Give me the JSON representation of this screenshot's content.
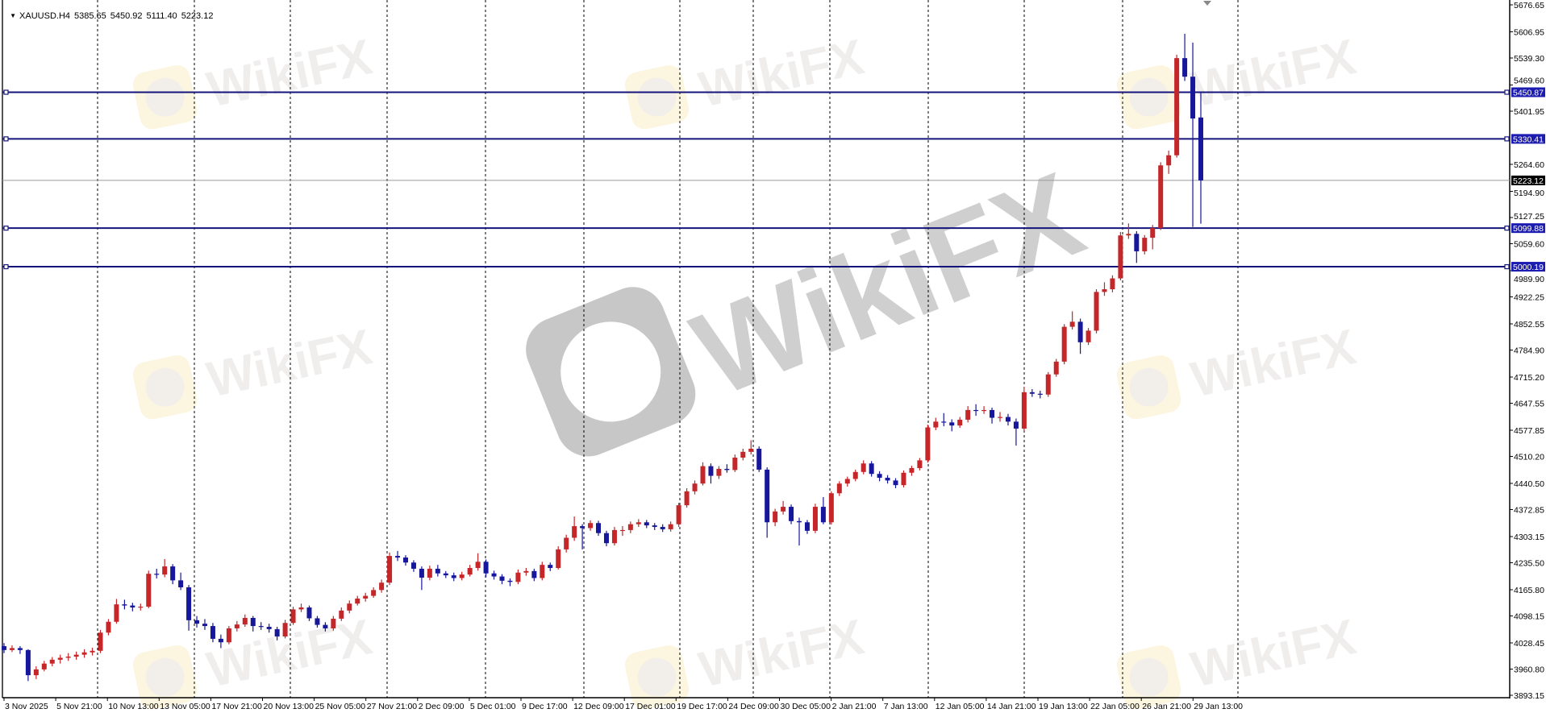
{
  "header": {
    "symbol": "XAUUSD.H4",
    "open": "5385.65",
    "high": "5450.92",
    "low": "5111.40",
    "close": "5223.12",
    "menu_icon": "triangle-down-icon"
  },
  "watermark": "WikiFX",
  "colors": {
    "bull": "#c4262a",
    "bear": "#17179c",
    "level_line": "#14147a",
    "level_label": "#1c1cb0",
    "current_price_label": "#000000",
    "grid": "#000000"
  },
  "chart_data": {
    "type": "candlestick",
    "symbol": "XAUUSD",
    "timeframe": "H4",
    "ylim": [
      3893.15,
      5676.65
    ],
    "grid": "vertical dashed",
    "y_ticks": [
      "5676.65",
      "5606.95",
      "5539.30",
      "5469.60",
      "5401.95",
      "5264.60",
      "5194.90",
      "5127.25",
      "5059.60",
      "4989.90",
      "4922.25",
      "4852.55",
      "4784.90",
      "4715.20",
      "4647.55",
      "4577.85",
      "4510.20",
      "4440.50",
      "4372.85",
      "4303.15",
      "4235.50",
      "4165.80",
      "4098.15",
      "4028.45",
      "3960.80",
      "3893.15"
    ],
    "x_ticks": [
      "3 Nov 2025",
      "5 Nov 21:00",
      "10 Nov 13:00",
      "13 Nov 05:00",
      "17 Nov 21:00",
      "20 Nov 13:00",
      "25 Nov 05:00",
      "27 Nov 21:00",
      "2 Dec 09:00",
      "5 Dec 01:00",
      "9 Dec 17:00",
      "12 Dec 09:00",
      "17 Dec 01:00",
      "19 Dec 17:00",
      "24 Dec 09:00",
      "30 Dec 05:00",
      "2 Jan 21:00",
      "7 Jan 13:00",
      "12 Jan 05:00",
      "14 Jan 21:00",
      "19 Jan 13:00",
      "22 Jan 05:00",
      "26 Jan 21:00",
      "29 Jan 13:00"
    ],
    "horizontal_levels": [
      5450.87,
      5330.41,
      5099.88,
      5000.19
    ],
    "horizontal_level_labels": [
      "5450.87",
      "5330.41",
      "5099.88",
      "5000.19"
    ],
    "current_price": 5223.12,
    "current_price_label": "5223.12",
    "candles_ohlc": [
      [
        4020,
        4028,
        4002,
        4010
      ],
      [
        4010,
        4022,
        4005,
        4015
      ],
      [
        4015,
        4020,
        4000,
        4010
      ],
      [
        4010,
        4012,
        3930,
        3945
      ],
      [
        3945,
        3968,
        3935,
        3960
      ],
      [
        3960,
        3982,
        3955,
        3975
      ],
      [
        3975,
        3992,
        3968,
        3985
      ],
      [
        3985,
        3998,
        3975,
        3990
      ],
      [
        3990,
        4002,
        3982,
        3993
      ],
      [
        3993,
        4006,
        3985,
        3998
      ],
      [
        3998,
        4012,
        3990,
        4004
      ],
      [
        4004,
        4016,
        3996,
        4008
      ],
      [
        4008,
        4062,
        4002,
        4055
      ],
      [
        4055,
        4090,
        4048,
        4083
      ],
      [
        4083,
        4142,
        4078,
        4128
      ],
      [
        4128,
        4140,
        4115,
        4125
      ],
      [
        4125,
        4132,
        4110,
        4120
      ],
      [
        4120,
        4130,
        4112,
        4122
      ],
      [
        4122,
        4215,
        4118,
        4207
      ],
      [
        4207,
        4220,
        4195,
        4205
      ],
      [
        4205,
        4245,
        4198,
        4226
      ],
      [
        4226,
        4232,
        4180,
        4190
      ],
      [
        4190,
        4210,
        4165,
        4172
      ],
      [
        4172,
        4178,
        4060,
        4087
      ],
      [
        4087,
        4098,
        4068,
        4078
      ],
      [
        4078,
        4090,
        4062,
        4072
      ],
      [
        4072,
        4080,
        4030,
        4039
      ],
      [
        4039,
        4050,
        4015,
        4030
      ],
      [
        4030,
        4072,
        4025,
        4066
      ],
      [
        4066,
        4085,
        4058,
        4076
      ],
      [
        4076,
        4102,
        4070,
        4093
      ],
      [
        4093,
        4098,
        4058,
        4072
      ],
      [
        4072,
        4082,
        4062,
        4070
      ],
      [
        4070,
        4078,
        4055,
        4064
      ],
      [
        4064,
        4070,
        4035,
        4045
      ],
      [
        4045,
        4088,
        4040,
        4080
      ],
      [
        4080,
        4122,
        4075,
        4115
      ],
      [
        4115,
        4130,
        4108,
        4120
      ],
      [
        4120,
        4125,
        4085,
        4092
      ],
      [
        4092,
        4098,
        4068,
        4075
      ],
      [
        4075,
        4082,
        4058,
        4066
      ],
      [
        4066,
        4098,
        4060,
        4091
      ],
      [
        4091,
        4120,
        4085,
        4112
      ],
      [
        4112,
        4138,
        4105,
        4130
      ],
      [
        4130,
        4150,
        4125,
        4143
      ],
      [
        4143,
        4158,
        4135,
        4150
      ],
      [
        4150,
        4172,
        4145,
        4165
      ],
      [
        4165,
        4192,
        4158,
        4184
      ],
      [
        4184,
        4262,
        4178,
        4253
      ],
      [
        4253,
        4266,
        4240,
        4249
      ],
      [
        4249,
        4255,
        4228,
        4236
      ],
      [
        4236,
        4242,
        4212,
        4220
      ],
      [
        4220,
        4226,
        4165,
        4197
      ],
      [
        4197,
        4228,
        4190,
        4220
      ],
      [
        4220,
        4230,
        4200,
        4208
      ],
      [
        4208,
        4214,
        4196,
        4203
      ],
      [
        4203,
        4210,
        4188,
        4196
      ],
      [
        4196,
        4212,
        4190,
        4205
      ],
      [
        4205,
        4230,
        4200,
        4222
      ],
      [
        4222,
        4260,
        4215,
        4238
      ],
      [
        4238,
        4244,
        4198,
        4208
      ],
      [
        4208,
        4215,
        4192,
        4200
      ],
      [
        4200,
        4206,
        4180,
        4189
      ],
      [
        4189,
        4195,
        4175,
        4186
      ],
      [
        4186,
        4218,
        4180,
        4210
      ],
      [
        4210,
        4222,
        4202,
        4214
      ],
      [
        4214,
        4220,
        4188,
        4196
      ],
      [
        4196,
        4238,
        4190,
        4230
      ],
      [
        4230,
        4236,
        4214,
        4222
      ],
      [
        4222,
        4278,
        4218,
        4270
      ],
      [
        4270,
        4308,
        4262,
        4300
      ],
      [
        4300,
        4355,
        4292,
        4330
      ],
      [
        4330,
        4335,
        4270,
        4325
      ],
      [
        4325,
        4345,
        4318,
        4338
      ],
      [
        4338,
        4344,
        4305,
        4312
      ],
      [
        4312,
        4318,
        4278,
        4286
      ],
      [
        4286,
        4328,
        4280,
        4320
      ],
      [
        4320,
        4330,
        4305,
        4320
      ],
      [
        4320,
        4342,
        4312,
        4335
      ],
      [
        4335,
        4348,
        4328,
        4340
      ],
      [
        4340,
        4346,
        4325,
        4332
      ],
      [
        4332,
        4338,
        4320,
        4328
      ],
      [
        4328,
        4335,
        4315,
        4322
      ],
      [
        4322,
        4342,
        4316,
        4335
      ],
      [
        4335,
        4390,
        4328,
        4384
      ],
      [
        4384,
        4428,
        4378,
        4420
      ],
      [
        4420,
        4448,
        4412,
        4440
      ],
      [
        4440,
        4495,
        4435,
        4485
      ],
      [
        4485,
        4492,
        4440,
        4460
      ],
      [
        4460,
        4485,
        4452,
        4478
      ],
      [
        4478,
        4490,
        4468,
        4475
      ],
      [
        4475,
        4515,
        4470,
        4507
      ],
      [
        4507,
        4530,
        4500,
        4522
      ],
      [
        4522,
        4552,
        4515,
        4530
      ],
      [
        4530,
        4536,
        4470,
        4476
      ],
      [
        4476,
        4482,
        4300,
        4340
      ],
      [
        4340,
        4375,
        4330,
        4368
      ],
      [
        4368,
        4395,
        4360,
        4380
      ],
      [
        4380,
        4386,
        4335,
        4343
      ],
      [
        4343,
        4352,
        4280,
        4340
      ],
      [
        4340,
        4346,
        4310,
        4318
      ],
      [
        4318,
        4388,
        4312,
        4380
      ],
      [
        4380,
        4405,
        4335,
        4340
      ],
      [
        4340,
        4420,
        4334,
        4415
      ],
      [
        4415,
        4446,
        4408,
        4440
      ],
      [
        4440,
        4458,
        4432,
        4452
      ],
      [
        4452,
        4476,
        4446,
        4470
      ],
      [
        4470,
        4500,
        4464,
        4492
      ],
      [
        4492,
        4498,
        4458,
        4465
      ],
      [
        4465,
        4472,
        4446,
        4455
      ],
      [
        4455,
        4462,
        4440,
        4448
      ],
      [
        4448,
        4454,
        4428,
        4436
      ],
      [
        4436,
        4474,
        4430,
        4468
      ],
      [
        4468,
        4486,
        4460,
        4480
      ],
      [
        4480,
        4506,
        4474,
        4500
      ],
      [
        4500,
        4592,
        4494,
        4585
      ],
      [
        4585,
        4610,
        4578,
        4600
      ],
      [
        4600,
        4622,
        4588,
        4598
      ],
      [
        4598,
        4606,
        4575,
        4590
      ],
      [
        4590,
        4612,
        4584,
        4605
      ],
      [
        4605,
        4640,
        4598,
        4630
      ],
      [
        4630,
        4645,
        4615,
        4628
      ],
      [
        4628,
        4640,
        4620,
        4630
      ],
      [
        4630,
        4636,
        4595,
        4610
      ],
      [
        4610,
        4625,
        4600,
        4612
      ],
      [
        4612,
        4620,
        4590,
        4600
      ],
      [
        4600,
        4608,
        4538,
        4582
      ],
      [
        4582,
        4690,
        4576,
        4676
      ],
      [
        4676,
        4684,
        4664,
        4672
      ],
      [
        4672,
        4680,
        4660,
        4670
      ],
      [
        4670,
        4728,
        4664,
        4722
      ],
      [
        4722,
        4762,
        4716,
        4755
      ],
      [
        4755,
        4852,
        4748,
        4845
      ],
      [
        4845,
        4885,
        4838,
        4858
      ],
      [
        4858,
        4866,
        4775,
        4805
      ],
      [
        4805,
        4842,
        4798,
        4835
      ],
      [
        4835,
        4942,
        4828,
        4935
      ],
      [
        4935,
        4960,
        4925,
        4942
      ],
      [
        4942,
        4978,
        4934,
        4970
      ],
      [
        4970,
        5090,
        4965,
        5081
      ],
      [
        5081,
        5112,
        5072,
        5085
      ],
      [
        5085,
        5092,
        5010,
        5040
      ],
      [
        5040,
        5082,
        5032,
        5075
      ],
      [
        5075,
        5108,
        5045,
        5100
      ],
      [
        5100,
        5270,
        5095,
        5262
      ],
      [
        5262,
        5300,
        5240,
        5288
      ],
      [
        5288,
        5548,
        5282,
        5539
      ],
      [
        5539,
        5602,
        5480,
        5491
      ],
      [
        5491,
        5579,
        5103,
        5383
      ],
      [
        5385.65,
        5450.92,
        5111.4,
        5223.12
      ]
    ]
  }
}
